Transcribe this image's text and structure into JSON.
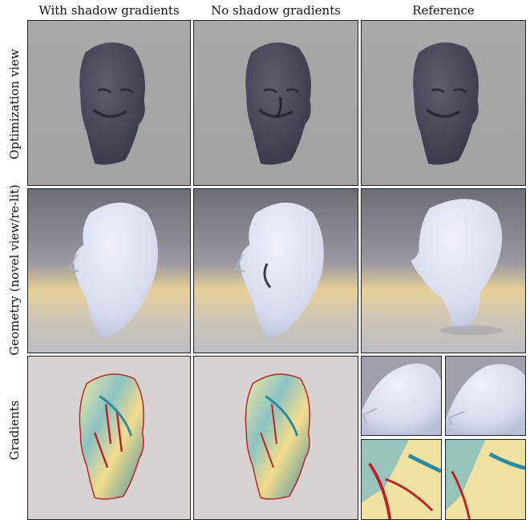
{
  "figure": {
    "column_titles": [
      "With shadow gradients",
      "No shadow gradients",
      "Reference"
    ],
    "row_titles": [
      "Optimization view",
      "Geometry (novel view/re-lit)",
      "Gradients"
    ]
  },
  "colors": {
    "opt_background": "#a6a6a6",
    "head_dark": "#4a4c60",
    "geo_top": "#6f7078",
    "geo_warm": "#e6c98a",
    "head_white": "#dfe2f0",
    "grad_background": "#d6d3d0",
    "grad_red": "#b8242a",
    "grad_yellow": "#f2e08a",
    "grad_teal": "#2f8aa0"
  },
  "icons": [
    "head-render",
    "gradient-map"
  ]
}
